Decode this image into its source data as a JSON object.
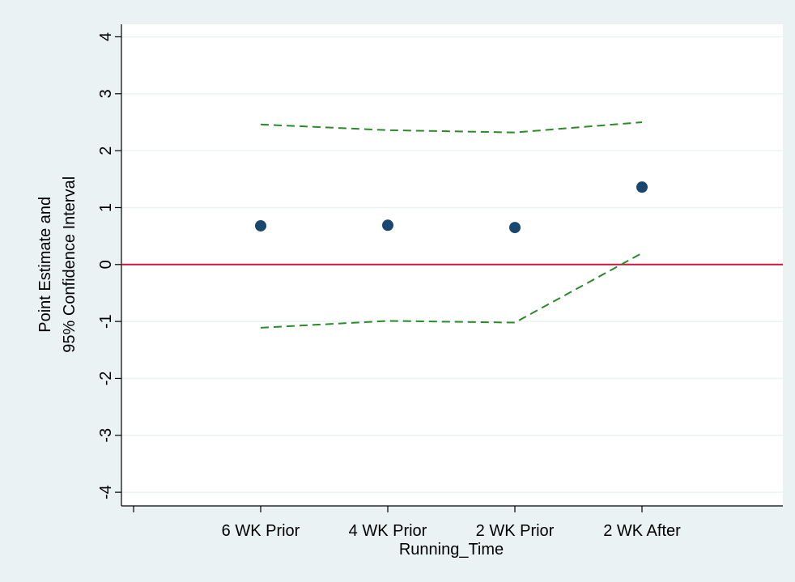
{
  "chart_data": {
    "type": "line",
    "xlabel": "Running_Time",
    "ylabel": [
      "Point Estimate and",
      "95% Confidence Interval"
    ],
    "categories": [
      null,
      "6 WK Prior",
      "4 WK Prior",
      "2 WK Prior",
      "2 WK After"
    ],
    "series": [
      {
        "style": "marker",
        "color": "#1a476f",
        "values": [
          null,
          0.68,
          0.69,
          0.65,
          1.36
        ]
      },
      {
        "style": "dashed",
        "color": "#2a8a2a",
        "values": [
          null,
          2.46,
          2.36,
          2.32,
          2.5
        ]
      },
      {
        "style": "dashed",
        "color": "#2a8a2a",
        "values": [
          null,
          -1.11,
          -0.99,
          -1.02,
          0.2
        ]
      }
    ],
    "ylim": [
      -4.24,
      4.22
    ],
    "yticks": [
      -4,
      -3,
      -2,
      -1,
      0,
      1,
      2,
      3,
      4
    ],
    "grid": true,
    "refline": 0,
    "refline_color": "#c8193c"
  }
}
